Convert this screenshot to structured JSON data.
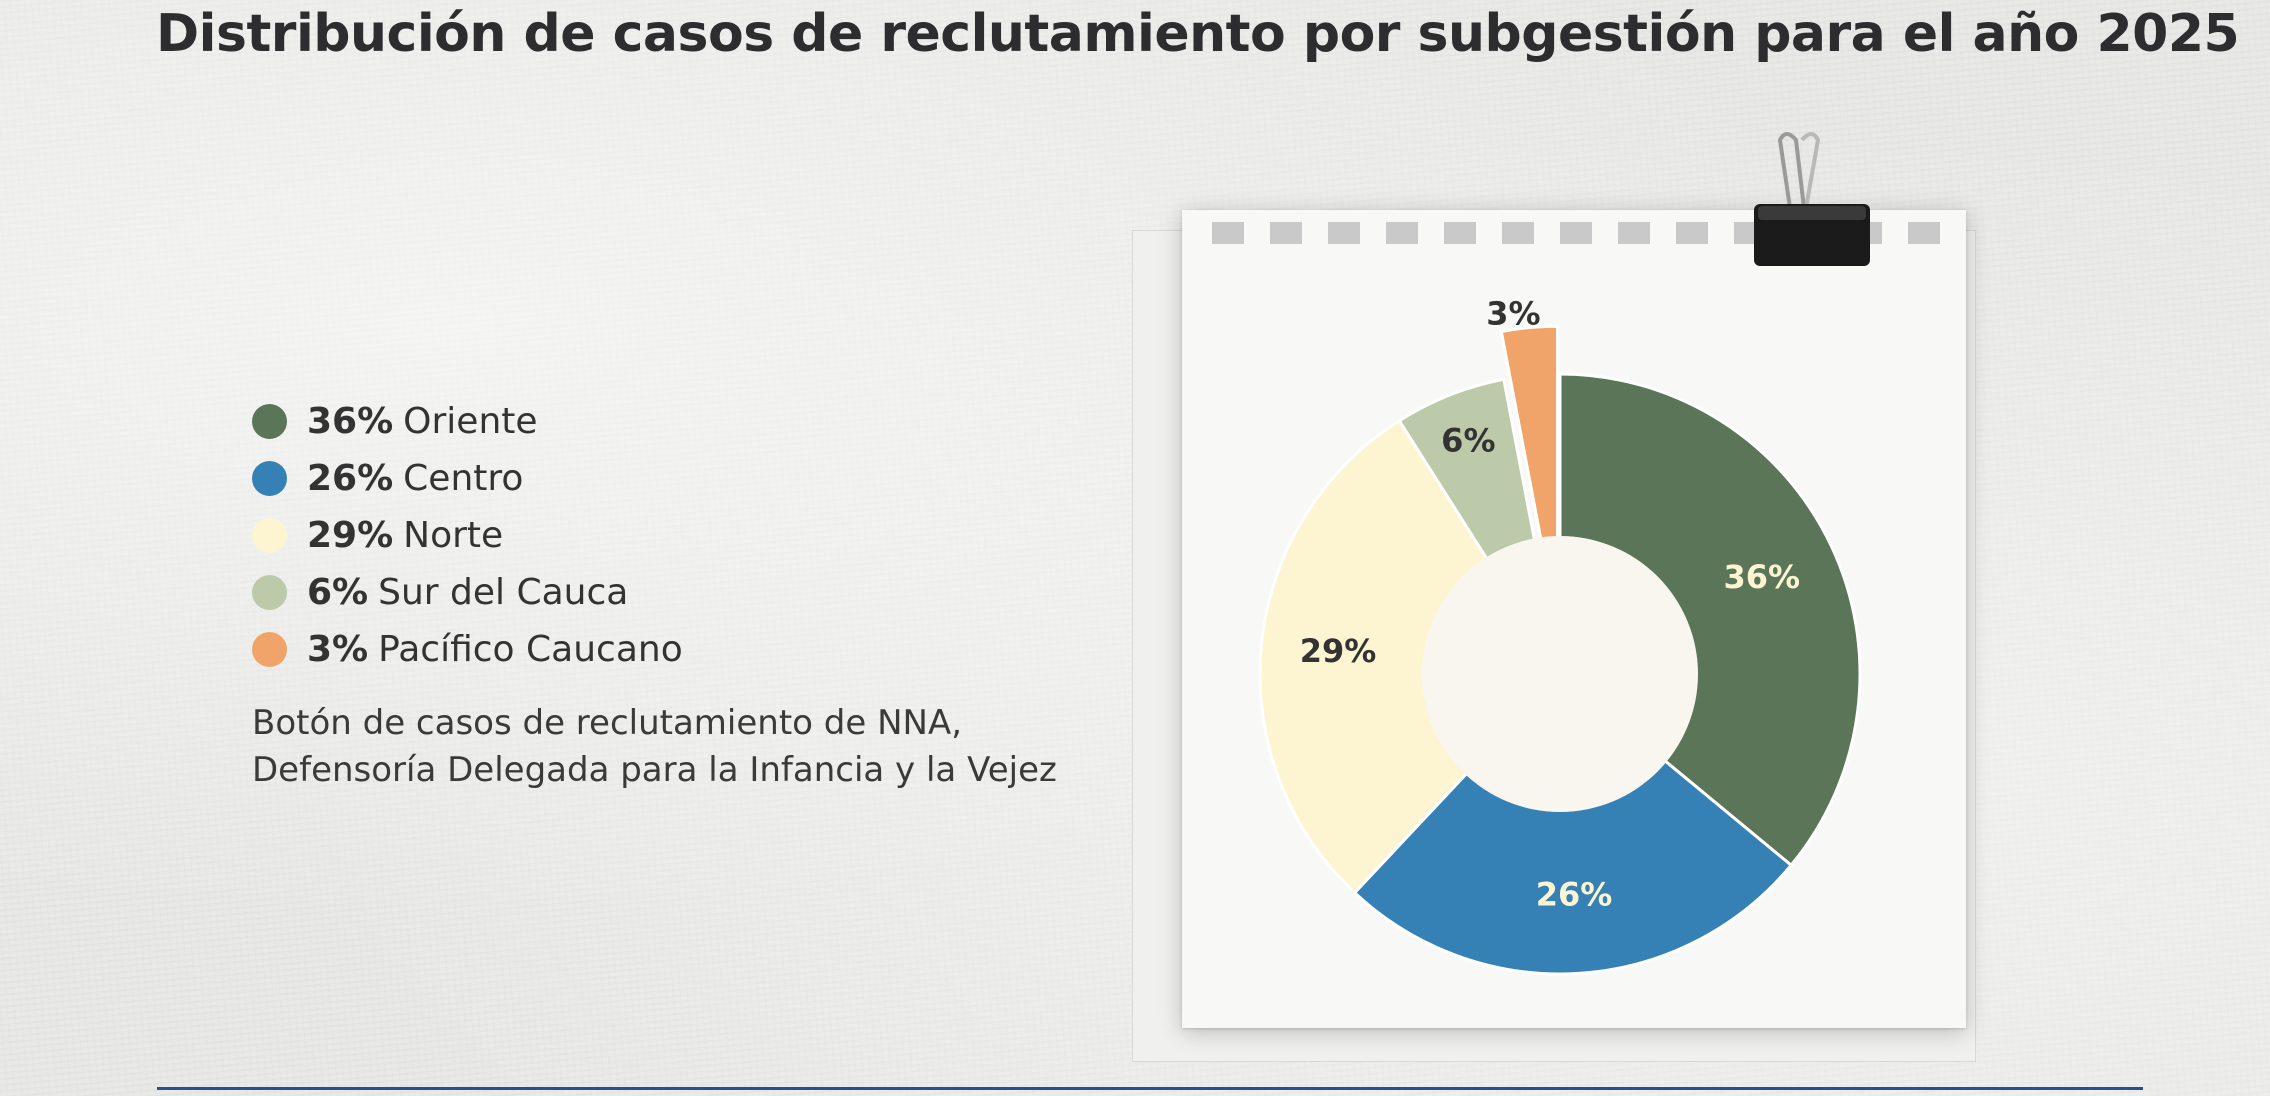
{
  "title": "Distribución de casos de reclutamiento por subgestión para el año 2025",
  "note": "Botón de casos de reclutamiento de NNA, Defensoría Delegada para la Infancia y la Vejez",
  "legend": [
    {
      "pct": "36%",
      "label": "Oriente",
      "color": "#5b7559"
    },
    {
      "pct": "26%",
      "label": "Centro",
      "color": "#3580b5"
    },
    {
      "pct": "29%",
      "label": "Norte",
      "color": "#fdf4d2"
    },
    {
      "pct": "6%",
      "label": "Sur del Cauca",
      "color": "#bccaa9"
    },
    {
      "pct": "3%",
      "label": "Pacífico Caucano",
      "color": "#f0a46a"
    }
  ],
  "chart_data": {
    "type": "pie",
    "variant": "donut",
    "categories": [
      "Oriente",
      "Centro",
      "Norte",
      "Sur del Cauca",
      "Pacífico Caucano"
    ],
    "values": [
      36,
      26,
      29,
      6,
      3
    ],
    "data_labels": [
      "36%",
      "26%",
      "29%",
      "6%",
      "3%"
    ],
    "colors": [
      "#5b7559",
      "#3580b5",
      "#fdf4d2",
      "#bccaa9",
      "#f0a46a"
    ],
    "label_colors": [
      "#fdf4d2",
      "#fdf4d2",
      "#333333",
      "#333333",
      "#333333"
    ],
    "exploded": [
      "Pacífico Caucano"
    ],
    "legend_position": "left"
  }
}
